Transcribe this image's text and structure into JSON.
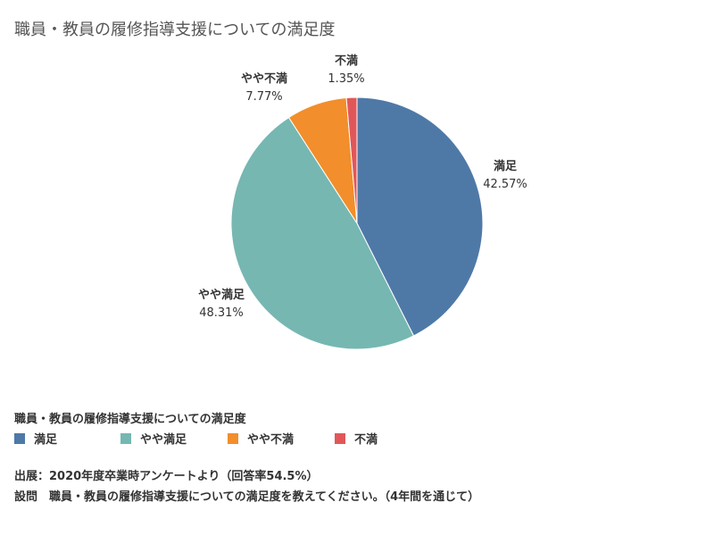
{
  "chart_data": {
    "type": "pie",
    "title": "職員・教員の履修指導支援についての満足度",
    "categories": [
      "満足",
      "やや満足",
      "やや不満",
      "不満"
    ],
    "values": [
      42.57,
      48.31,
      7.77,
      1.35
    ],
    "value_labels": [
      "42.57%",
      "48.31%",
      "7.77%",
      "1.35%"
    ],
    "colors": [
      "#4e79a7",
      "#76b7b2",
      "#f28e2b",
      "#e15759"
    ],
    "start_angle": "12 o'clock",
    "direction": "clockwise",
    "legend": {
      "title": "職員・教員の履修指導支援についての満足度",
      "placement": "bottom-left"
    }
  },
  "footnotes": {
    "source": "出展：2020年度卒業時アンケートより（回答率54.5%）",
    "question": "設問　職員・教員の履修指導支援についての満足度を教えてください。（4年間を通じて）"
  }
}
